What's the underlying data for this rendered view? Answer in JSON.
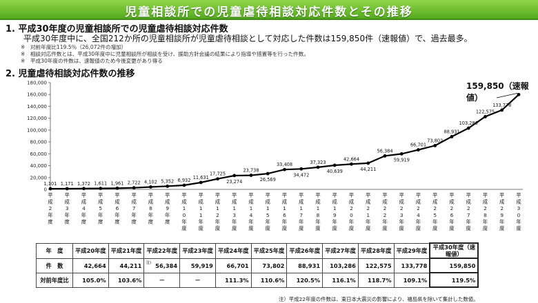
{
  "banner": {
    "title": "児童相談所での児童虐待相談対応件数とその推移"
  },
  "section1": {
    "heading": "1. 平成30年度の児童相談所での児童虐待相談対応件数",
    "lead": "平成30年度中に、全国212か所の児童相談所が児童虐待相談として対応した件数は159,850件（速報値）で、過去最多。",
    "notes": [
      "※　対前年度比119.5％（26,072件の増加）",
      "※　相談対応件数とは、平成30年度中に児童相談所が相談を受け、援助方針会議の結果により指導や措置等を行った件数。",
      "※　平成30年度の件数は、速報値のため今後変更があり得る"
    ]
  },
  "section2": {
    "heading": "2. 児童虐待相談対応件数の推移"
  },
  "callout": "159,850（速報値）",
  "colors": {
    "line": "#000000",
    "banner": "#6cc12f",
    "grid": "#d0d0d0"
  },
  "chart_data": {
    "type": "line",
    "title": "",
    "xlabel": "",
    "ylabel": "",
    "ylim": [
      0,
      180000
    ],
    "yticks": [
      0,
      20000,
      40000,
      60000,
      80000,
      100000,
      120000,
      140000,
      160000,
      180000
    ],
    "grid": false,
    "categories": [
      "平成2年度",
      "平成3年度",
      "平成4年度",
      "平成5年度",
      "平成6年度",
      "平成7年度",
      "平成8年度",
      "平成9年度",
      "平成10年度",
      "平成11年度",
      "平成12年度",
      "平成13年度",
      "平成14年度",
      "平成15年度",
      "平成16年度",
      "平成17年度",
      "平成18年度",
      "平成19年度",
      "平成20年度",
      "平成21年度",
      "平成22年度",
      "平成23年度",
      "平成24年度",
      "平成25年度",
      "平成26年度",
      "平成27年度",
      "平成28年度",
      "平成29年度",
      "平成30年度"
    ],
    "values": [
      1101,
      1171,
      1372,
      1611,
      1961,
      2722,
      4102,
      5352,
      6932,
      11631,
      17725,
      23274,
      23738,
      26569,
      33408,
      34472,
      37323,
      40639,
      42664,
      44211,
      56384,
      59919,
      66701,
      73802,
      88931,
      103286,
      122575,
      133778,
      159850
    ],
    "value_labels": [
      "1,101",
      "1,171",
      "1,372",
      "1,611",
      "1,961",
      "2,722",
      "4,102",
      "5,352",
      "6,932",
      "11,631",
      "17,725",
      "23,274",
      "23,738",
      "26,569",
      "33,408",
      "34,472",
      "37,323",
      "40,639",
      "42,664",
      "44,211",
      "56,384",
      "59,919",
      "66,701",
      "73,802",
      "88,931",
      "103,286",
      "122,575",
      "133,778",
      ""
    ]
  },
  "table": {
    "row_headers": [
      "年　度",
      "件　数",
      "対前年度比"
    ],
    "years": [
      "平成20年度",
      "平成21年度",
      "平成22年度",
      "平成23年度",
      "平成24年度",
      "平成25年度",
      "平成26年度",
      "平成27年度",
      "平成28年度",
      "平成29年度",
      "平成30年度（速報値）"
    ],
    "counts": [
      "42,664",
      "44,211",
      "56,384",
      "59,919",
      "66,701",
      "73,802",
      "88,931",
      "103,286",
      "122,575",
      "133,778",
      "159,850"
    ],
    "ratios": [
      "105.0%",
      "103.6%",
      "－",
      "－",
      "111.3%",
      "110.6%",
      "120.5%",
      "116.1%",
      "118.7%",
      "109.1%",
      "119.5%"
    ],
    "cell_note": "注)"
  },
  "footnote": "注）平成22年度の件数は、東日本大震災の影響により、福島県を除いて集計した数値。"
}
